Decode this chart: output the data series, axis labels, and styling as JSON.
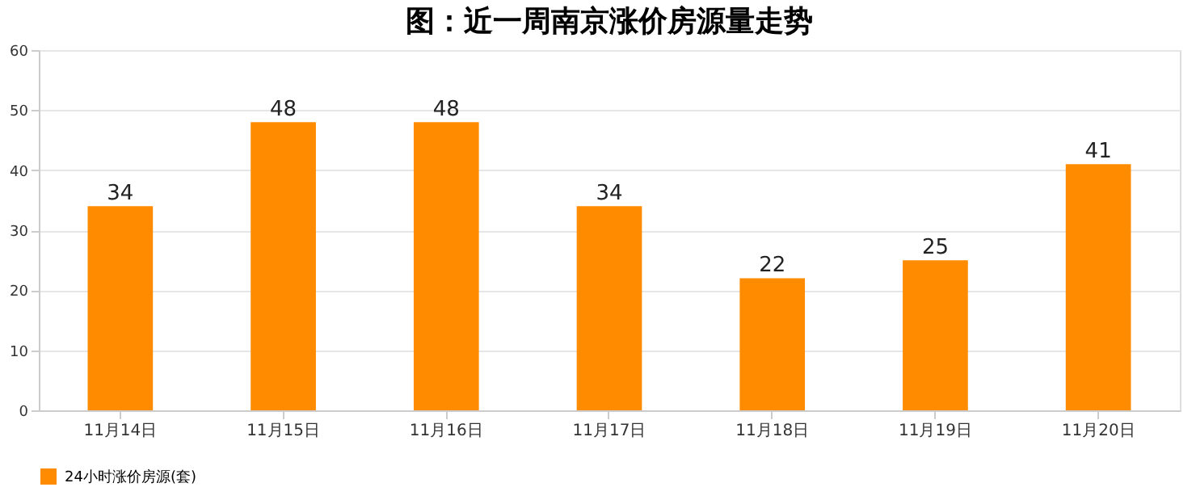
{
  "chart_data": {
    "type": "bar",
    "title": "图：近一周南京涨价房源量走势",
    "categories": [
      "11月14日",
      "11月15日",
      "11月16日",
      "11月17日",
      "11月18日",
      "11月19日",
      "11月20日"
    ],
    "series": [
      {
        "name": "24小时涨价房源(套)",
        "color": "#ff8c00",
        "values": [
          34,
          48,
          48,
          34,
          22,
          25,
          41
        ]
      }
    ],
    "ylim": [
      0,
      60
    ],
    "yticks": [
      0,
      10,
      20,
      30,
      40,
      50,
      60
    ],
    "grid": "y",
    "legend": "bottom",
    "data_labels": true
  }
}
